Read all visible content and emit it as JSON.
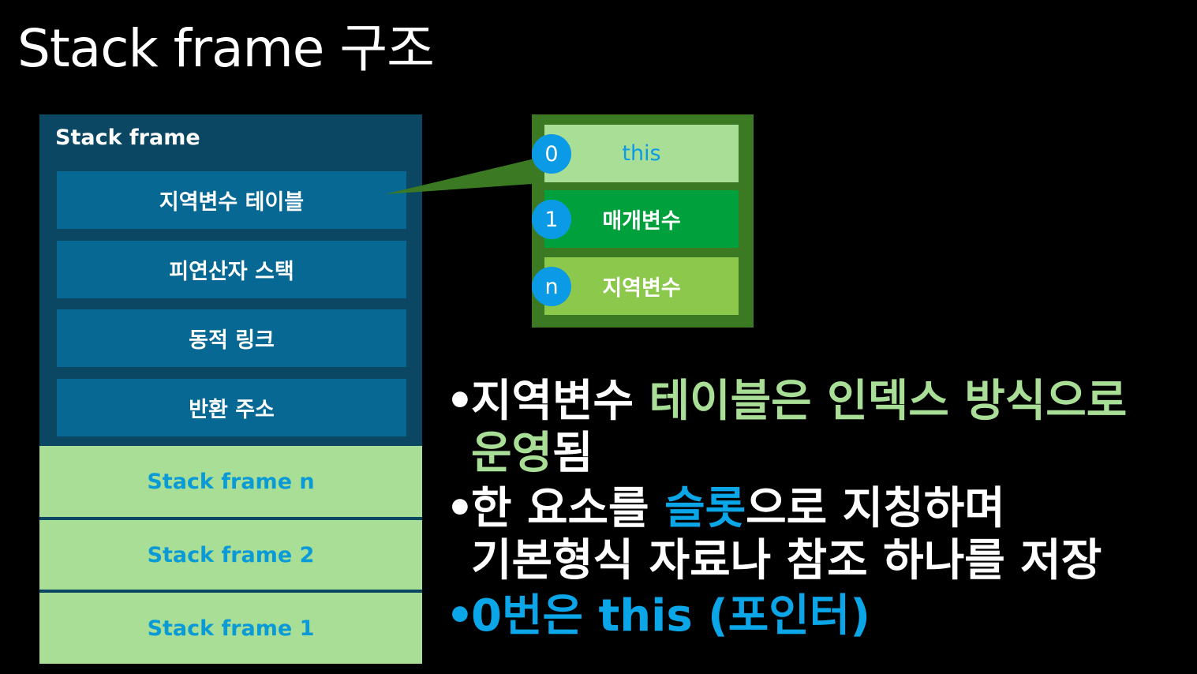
{
  "title": "Stack frame 구조",
  "stack": {
    "frame_label": "Stack frame",
    "frame_items": [
      "지역변수 테이블",
      "피연산자 스택",
      "동적 링크",
      "반환 주소"
    ],
    "lower_frames": [
      "Stack frame n",
      "Stack frame 2",
      "Stack frame 1"
    ]
  },
  "local_var_table": {
    "slots": [
      {
        "index": "0",
        "label": "this"
      },
      {
        "index": "1",
        "label": "매개변수"
      },
      {
        "index": "n",
        "label": "지역변수"
      }
    ]
  },
  "bullets": {
    "b1": {
      "dot": "•",
      "pre": "지역변수 ",
      "hl": "테이블은 인덱스 방식으로",
      "line2_hl": "운영",
      "line2_post": "됨"
    },
    "b2": {
      "dot": "•",
      "pre": "한 요소를 ",
      "hl": "슬롯",
      "post": "으로 지칭하며",
      "line2": "기본형식 자료나 참조 하나를 저장"
    },
    "b3": {
      "dot": "•",
      "text": "0번은 this (포인터)"
    }
  },
  "colors": {
    "background": "#000000",
    "frame_dark": "#0b4762",
    "frame_item": "#076893",
    "light_green": "#a8de96",
    "mid_green": "#00a03c",
    "lime_green": "#8cc84b",
    "table_border": "#3b7a23",
    "blue": "#0a9ae6"
  }
}
